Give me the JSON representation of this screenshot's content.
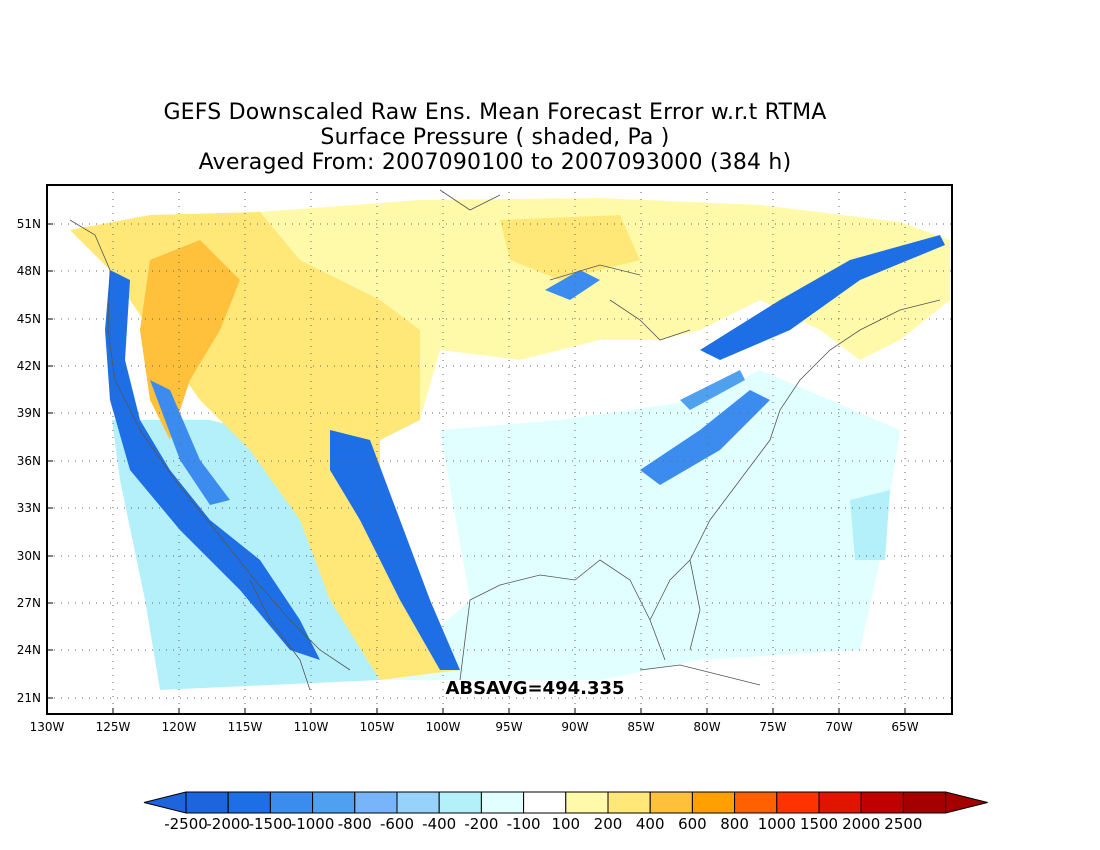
{
  "title": {
    "line1": "GEFS Downscaled Raw Ens. Mean Forecast Error w.r.t RTMA",
    "line2": "Surface Pressure ( shaded, Pa )",
    "line3": "Averaged From: 2007090100 to 2007093000 (384 h)"
  },
  "map": {
    "lat_labels": [
      "51N",
      "48N",
      "45N",
      "42N",
      "39N",
      "36N",
      "33N",
      "30N",
      "27N",
      "24N",
      "21N"
    ],
    "lon_labels": [
      "130W",
      "125W",
      "120W",
      "115W",
      "110W",
      "105W",
      "100W",
      "95W",
      "90W",
      "85W",
      "80W",
      "75W",
      "70W",
      "65W"
    ],
    "annotation": "ABSAVG=494.335",
    "grid": true
  },
  "colorbar": {
    "labels": [
      "-2500",
      "-2000",
      "-1500",
      "-1000",
      "-800",
      "-600",
      "-400",
      "-200",
      "-100",
      "100",
      "200",
      "400",
      "600",
      "800",
      "1000",
      "1500",
      "2000",
      "2500"
    ],
    "colors": [
      "#1e64dc",
      "#1e6ee6",
      "#3c8cf0",
      "#50a0f0",
      "#78b4fa",
      "#96d2fa",
      "#b4f0fa",
      "#e1ffff",
      "#ffffff",
      "#fffaaa",
      "#ffe878",
      "#ffc03c",
      "#ffa000",
      "#ff6000",
      "#ff3200",
      "#e11400",
      "#c00000",
      "#a50000"
    ],
    "low_arrow_color": "#1e64dc",
    "high_arrow_color": "#a50000"
  }
}
